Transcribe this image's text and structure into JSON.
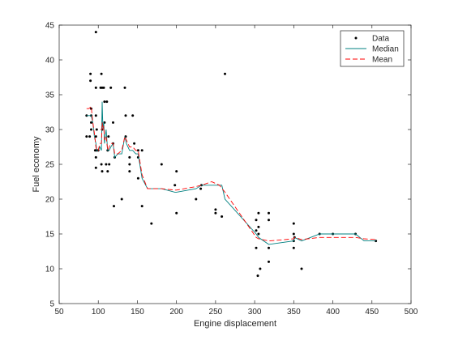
{
  "chart_data": {
    "type": "scatter",
    "xlabel": "Engine displacement",
    "ylabel": "Fuel economy",
    "xlim": [
      50,
      500
    ],
    "ylim": [
      5,
      45
    ],
    "xticks": [
      50,
      100,
      150,
      200,
      250,
      300,
      350,
      400,
      450,
      500
    ],
    "yticks": [
      5,
      10,
      15,
      20,
      25,
      30,
      35,
      40,
      45
    ],
    "grid": false,
    "legend_position": "top-right",
    "series": [
      {
        "name": "Data",
        "kind": "points",
        "color": "#000000",
        "points": [
          [
            85,
            32
          ],
          [
            85,
            29
          ],
          [
            89,
            29
          ],
          [
            90,
            38
          ],
          [
            90,
            37
          ],
          [
            91,
            33
          ],
          [
            91,
            32
          ],
          [
            91,
            31
          ],
          [
            91,
            30
          ],
          [
            96,
            27
          ],
          [
            97,
            44
          ],
          [
            97,
            36
          ],
          [
            97,
            32
          ],
          [
            97,
            29
          ],
          [
            97,
            26
          ],
          [
            97,
            24.5
          ],
          [
            98,
            30
          ],
          [
            98,
            27
          ],
          [
            100,
            27
          ],
          [
            103,
            36
          ],
          [
            104,
            38
          ],
          [
            104,
            25
          ],
          [
            105,
            30
          ],
          [
            105,
            24
          ],
          [
            105,
            36
          ],
          [
            107,
            36
          ],
          [
            108,
            34
          ],
          [
            108,
            31
          ],
          [
            110,
            25
          ],
          [
            111,
            34
          ],
          [
            112,
            27
          ],
          [
            112,
            24
          ],
          [
            113,
            29
          ],
          [
            114,
            25
          ],
          [
            116,
            36
          ],
          [
            119,
            31
          ],
          [
            119,
            28
          ],
          [
            120,
            19
          ],
          [
            121,
            26
          ],
          [
            130,
            20
          ],
          [
            134,
            36
          ],
          [
            135,
            32
          ],
          [
            135,
            29
          ],
          [
            140,
            26
          ],
          [
            140,
            25
          ],
          [
            140,
            24
          ],
          [
            144,
            32
          ],
          [
            146,
            28
          ],
          [
            151,
            27
          ],
          [
            151,
            26
          ],
          [
            151,
            23
          ],
          [
            156,
            27
          ],
          [
            156,
            19
          ],
          [
            168,
            16.5
          ],
          [
            181,
            25
          ],
          [
            198,
            22
          ],
          [
            200,
            24
          ],
          [
            200,
            18
          ],
          [
            225,
            20
          ],
          [
            231,
            21.5
          ],
          [
            232,
            22
          ],
          [
            250,
            18.5
          ],
          [
            250,
            18
          ],
          [
            258,
            17.5
          ],
          [
            262,
            38
          ],
          [
            302,
            15.5
          ],
          [
            302,
            13
          ],
          [
            302,
            17
          ],
          [
            304,
            9
          ],
          [
            305,
            16
          ],
          [
            305,
            18
          ],
          [
            305,
            15
          ],
          [
            307,
            10
          ],
          [
            318,
            18
          ],
          [
            318,
            17
          ],
          [
            318,
            13
          ],
          [
            318,
            11
          ],
          [
            350,
            16.5
          ],
          [
            350,
            15
          ],
          [
            350,
            14
          ],
          [
            350,
            13
          ],
          [
            351,
            14.5
          ],
          [
            360,
            10
          ],
          [
            383,
            15
          ],
          [
            400,
            15
          ],
          [
            429,
            15
          ],
          [
            455,
            14
          ]
        ]
      },
      {
        "name": "Median",
        "kind": "line",
        "color": "#008080",
        "points": [
          [
            85,
            32
          ],
          [
            88,
            32
          ],
          [
            91,
            32
          ],
          [
            93,
            31
          ],
          [
            95,
            29
          ],
          [
            97,
            28
          ],
          [
            98,
            27
          ],
          [
            100,
            27
          ],
          [
            102,
            27.5
          ],
          [
            104,
            27
          ],
          [
            105,
            34
          ],
          [
            106,
            30
          ],
          [
            107,
            31
          ],
          [
            108,
            28
          ],
          [
            110,
            30
          ],
          [
            112,
            27
          ],
          [
            114,
            27
          ],
          [
            116,
            27.5
          ],
          [
            119,
            28
          ],
          [
            121,
            26
          ],
          [
            125,
            26.5
          ],
          [
            130,
            26.5
          ],
          [
            134,
            29
          ],
          [
            136,
            28
          ],
          [
            140,
            27
          ],
          [
            144,
            27
          ],
          [
            148,
            26.5
          ],
          [
            151,
            26.5
          ],
          [
            156,
            23
          ],
          [
            163,
            21.5
          ],
          [
            168,
            21.5
          ],
          [
            181,
            21.5
          ],
          [
            198,
            21
          ],
          [
            200,
            21
          ],
          [
            225,
            21.5
          ],
          [
            232,
            22
          ],
          [
            250,
            22
          ],
          [
            258,
            22
          ],
          [
            262,
            20
          ],
          [
            302,
            15
          ],
          [
            305,
            14.5
          ],
          [
            318,
            13.5
          ],
          [
            350,
            14
          ],
          [
            351,
            14.5
          ],
          [
            360,
            14
          ],
          [
            383,
            15
          ],
          [
            400,
            15
          ],
          [
            429,
            15
          ],
          [
            440,
            14
          ],
          [
            455,
            14
          ]
        ]
      },
      {
        "name": "Mean",
        "kind": "line",
        "color": "#ff0000",
        "dashed": true,
        "points": [
          [
            85,
            33
          ],
          [
            88,
            33
          ],
          [
            91,
            33.3
          ],
          [
            93,
            31
          ],
          [
            95,
            29.5
          ],
          [
            97,
            27.5
          ],
          [
            98,
            27
          ],
          [
            100,
            27
          ],
          [
            102,
            28
          ],
          [
            104,
            28
          ],
          [
            105,
            31
          ],
          [
            106,
            30
          ],
          [
            107,
            30.5
          ],
          [
            108,
            28.5
          ],
          [
            110,
            29
          ],
          [
            112,
            27
          ],
          [
            114,
            27.5
          ],
          [
            116,
            28
          ],
          [
            119,
            28
          ],
          [
            121,
            26.5
          ],
          [
            125,
            26.5
          ],
          [
            130,
            27
          ],
          [
            134,
            29
          ],
          [
            136,
            28.5
          ],
          [
            140,
            27.5
          ],
          [
            144,
            27.5
          ],
          [
            148,
            27
          ],
          [
            151,
            27
          ],
          [
            156,
            23.5
          ],
          [
            163,
            21.5
          ],
          [
            168,
            21.5
          ],
          [
            181,
            21.5
          ],
          [
            198,
            21.3
          ],
          [
            200,
            21.3
          ],
          [
            225,
            21.8
          ],
          [
            232,
            22
          ],
          [
            245,
            22.5
          ],
          [
            255,
            22
          ],
          [
            262,
            21
          ],
          [
            302,
            14.5
          ],
          [
            305,
            14.3
          ],
          [
            318,
            14
          ],
          [
            350,
            14.3
          ],
          [
            351,
            14.5
          ],
          [
            360,
            14.2
          ],
          [
            383,
            14.5
          ],
          [
            400,
            14.5
          ],
          [
            429,
            14.5
          ],
          [
            440,
            14.3
          ],
          [
            455,
            14.2
          ]
        ]
      }
    ]
  }
}
